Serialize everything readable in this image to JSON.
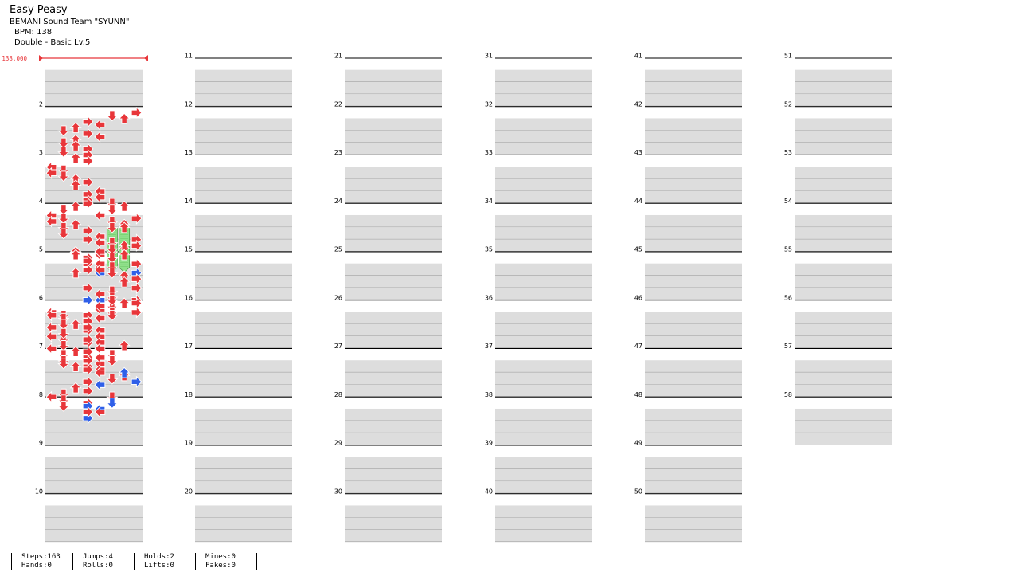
{
  "song": {
    "title": "Easy Peasy",
    "artist": "BEMANI Sound Team \"SYUNN\"",
    "bpm_label": "BPM: 138",
    "chart_label": "Double - Basic  Lv.5"
  },
  "bpm_marker": {
    "value": "138.000"
  },
  "colors": {
    "red_note": "#e8363a",
    "blue_note": "#2f5fe8",
    "hold": "#90e08a",
    "band": "#dddddd",
    "bpm": "#e8363a"
  },
  "measure_numbers": [
    "2",
    "3",
    "4",
    "5",
    "6",
    "7",
    "8",
    "9",
    "10",
    "11",
    "12",
    "13",
    "14",
    "15",
    "16",
    "17",
    "18",
    "19",
    "20",
    "21",
    "22",
    "23",
    "24",
    "25",
    "26",
    "27",
    "28",
    "29",
    "30",
    "31",
    "32",
    "33",
    "34",
    "35",
    "36",
    "37",
    "38",
    "39",
    "40",
    "41",
    "42",
    "43",
    "44",
    "45",
    "46",
    "47",
    "48",
    "49",
    "50",
    "51",
    "52",
    "53",
    "54",
    "55",
    "56",
    "57",
    "58"
  ],
  "stats": {
    "steps": "Steps:163",
    "hands": "Hands:0",
    "jumps": "Jumps:4",
    "rolls": "Rolls:0",
    "holds": "Holds:2",
    "lifts": "Lifts:0",
    "mines": "Mines:0",
    "fakes": "Fakes:0"
  },
  "notes": [
    {
      "m": 1,
      "b": 2,
      "l": 7,
      "c": "r"
    },
    {
      "m": 1,
      "b": 3,
      "l": 5,
      "c": "r"
    },
    {
      "m": 1,
      "b": 4,
      "l": 6,
      "c": "r"
    },
    {
      "m": 1,
      "b": 5,
      "l": 3,
      "c": "r"
    },
    {
      "m": 1,
      "b": 6,
      "l": 4,
      "c": "r"
    },
    {
      "m": 1,
      "b": 7,
      "l": 2,
      "c": "r"
    },
    {
      "m": 1,
      "b": 8,
      "l": 1,
      "c": "r"
    },
    {
      "m": 1,
      "b": 9,
      "l": 3,
      "c": "r"
    },
    {
      "m": 1,
      "b": 10,
      "l": 4,
      "c": "r"
    },
    {
      "m": 1,
      "b": 11,
      "l": 2,
      "c": "r"
    },
    {
      "m": 1,
      "b": 12,
      "l": 1,
      "c": "r"
    },
    {
      "m": 1,
      "b": 13,
      "l": 2,
      "c": "r"
    },
    {
      "m": 1,
      "b": 14,
      "l": 3,
      "c": "r"
    },
    {
      "m": 1,
      "b": 15,
      "l": 1,
      "c": "r"
    },
    {
      "m": 2,
      "b": 0,
      "l": 3,
      "c": "r"
    },
    {
      "m": 2,
      "b": 1,
      "l": 2,
      "c": "r"
    },
    {
      "m": 2,
      "b": 2,
      "l": 3,
      "c": "r"
    },
    {
      "m": 2,
      "b": 4,
      "l": 0,
      "c": "r"
    },
    {
      "m": 2,
      "b": 5,
      "l": 1,
      "c": "r"
    },
    {
      "m": 2,
      "b": 6,
      "l": 0,
      "c": "r"
    },
    {
      "m": 2,
      "b": 7,
      "l": 1,
      "c": "r"
    },
    {
      "m": 2,
      "b": 8,
      "l": 2,
      "c": "r"
    },
    {
      "m": 2,
      "b": 9,
      "l": 3,
      "c": "r"
    },
    {
      "m": 2,
      "b": 10,
      "l": 2,
      "c": "r"
    },
    {
      "m": 2,
      "b": 12,
      "l": 4,
      "c": "r"
    },
    {
      "m": 2,
      "b": 13,
      "l": 3,
      "c": "r"
    },
    {
      "m": 2,
      "b": 14,
      "l": 4,
      "c": "r"
    },
    {
      "m": 2,
      "b": 15,
      "l": 3,
      "c": "r"
    },
    {
      "m": 2,
      "b": 16,
      "l": 5,
      "c": "r"
    },
    {
      "m": 2,
      "b": 17,
      "l": 6,
      "c": "r"
    },
    {
      "m": 2,
      "b": 18,
      "l": 5,
      "c": "r"
    },
    {
      "m": 2,
      "b": 20,
      "l": 4,
      "c": "r"
    },
    {
      "m": 2,
      "b": 21,
      "l": 7,
      "c": "r"
    },
    {
      "m": 2,
      "b": 22,
      "l": 5,
      "c": "r"
    },
    {
      "m": 2,
      "b": 23,
      "l": 6,
      "c": "r"
    },
    {
      "m": 2,
      "b": 24,
      "l": 5,
      "c": "r"
    },
    {
      "m": 2,
      "b": 24,
      "l": 6,
      "c": "r"
    },
    {
      "m": 2,
      "b": 28,
      "l": 7,
      "c": "r"
    },
    {
      "m": 2,
      "b": 29,
      "l": 5,
      "c": "r"
    },
    {
      "m": 2,
      "b": 30,
      "l": 7,
      "c": "r"
    },
    {
      "m": 2,
      "b": 31,
      "l": 6,
      "c": "r"
    },
    {
      "m": 2,
      "b": 32,
      "l": 5,
      "c": "r"
    },
    {
      "m": 2,
      "b": 33,
      "l": 4,
      "c": "r"
    },
    {
      "m": 2,
      "b": 34,
      "l": 5,
      "c": "r"
    },
    {
      "m": 2,
      "b": 36,
      "l": 3,
      "c": "r"
    },
    {
      "m": 2,
      "b": 37,
      "l": 4,
      "c": "r"
    },
    {
      "m": 2,
      "b": 38,
      "l": 3,
      "c": "r"
    },
    {
      "m": 2,
      "b": 39,
      "l": 2,
      "c": "r"
    },
    {
      "m": 3,
      "b": 0,
      "l": 3,
      "c": "r"
    },
    {
      "m": 3,
      "b": 1,
      "l": 2,
      "c": "r"
    },
    {
      "m": 3,
      "b": 2,
      "l": 1,
      "c": "r"
    },
    {
      "m": 3,
      "b": 4,
      "l": 0,
      "c": "r"
    },
    {
      "m": 3,
      "b": 5,
      "l": 1,
      "c": "r"
    },
    {
      "m": 3,
      "b": 6,
      "l": 0,
      "c": "r"
    },
    {
      "m": 3,
      "b": 7,
      "l": 2,
      "c": "r"
    },
    {
      "m": 3,
      "b": 8,
      "l": 1,
      "c": "r"
    },
    {
      "m": 3,
      "b": 9,
      "l": 3,
      "c": "r"
    },
    {
      "m": 3,
      "b": 10,
      "l": 1,
      "c": "r"
    },
    {
      "m": 3,
      "b": 11,
      "l": 4,
      "c": "r"
    },
    {
      "m": 3,
      "b": 12,
      "l": 3,
      "c": "r"
    },
    {
      "m": 3,
      "b": 13,
      "l": 4,
      "c": "r"
    },
    {
      "m": 3,
      "b": 14,
      "l": 6,
      "c": "r"
    },
    {
      "m": 3,
      "b": 15,
      "l": 5,
      "c": "r"
    },
    {
      "m": 3,
      "b": 16,
      "l": 4,
      "c": "r"
    },
    {
      "m": 3,
      "b": 17,
      "l": 6,
      "c": "r"
    },
    {
      "m": 3,
      "b": 18,
      "l": 5,
      "c": "r"
    },
    {
      "m": 3,
      "b": 20,
      "l": 7,
      "c": "r"
    },
    {
      "m": 3,
      "b": 23,
      "l": 4,
      "c": "b"
    },
    {
      "m": 3,
      "b": 23,
      "l": 7,
      "c": "b"
    },
    {
      "m": 3,
      "b": 28,
      "l": 3,
      "c": "r"
    },
    {
      "m": 3,
      "b": 32,
      "l": 3,
      "c": "b"
    },
    {
      "m": 3,
      "b": 32,
      "l": 4,
      "c": "b"
    },
    {
      "m": 3,
      "b": 36,
      "l": 0,
      "c": "r"
    },
    {
      "m": 3,
      "b": 37,
      "l": 0,
      "c": "r"
    },
    {
      "m": 3,
      "b": 37,
      "l": 1,
      "c": "r"
    },
    {
      "m": 3,
      "b": 38,
      "l": 1,
      "c": "r"
    },
    {
      "m": 4,
      "b": 0,
      "l": 2,
      "c": "r"
    },
    {
      "m": 4,
      "b": 1,
      "l": 2,
      "c": "r"
    },
    {
      "m": 4,
      "b": 2,
      "l": 3,
      "c": "r"
    },
    {
      "m": 4,
      "b": 3,
      "l": 3,
      "c": "r"
    },
    {
      "m": 4,
      "b": 4,
      "l": 4,
      "c": "r"
    },
    {
      "m": 4,
      "b": 5,
      "l": 5,
      "c": "r"
    },
    {
      "m": 4,
      "b": 6,
      "l": 4,
      "c": "r"
    },
    {
      "m": 4,
      "b": 7,
      "l": 5,
      "c": "r"
    },
    {
      "m": 4,
      "b": 8,
      "l": 6,
      "c": "r"
    },
    {
      "m": 4,
      "b": 9,
      "l": 7,
      "c": "r"
    },
    {
      "m": 4,
      "b": 10,
      "l": 6,
      "c": "r"
    },
    {
      "m": 4,
      "b": 12,
      "l": 7,
      "c": "r"
    },
    {
      "m": 4,
      "b": 13,
      "l": 5,
      "c": "r"
    },
    {
      "m": 4,
      "b": 14,
      "l": 4,
      "c": "r"
    },
    {
      "m": 4,
      "b": 15,
      "l": 5,
      "c": "r"
    },
    {
      "m": 4,
      "b": 16,
      "l": 7,
      "c": "r"
    },
    {
      "m": 4,
      "b": 17,
      "l": 6,
      "c": "r"
    },
    {
      "m": 4,
      "b": 18,
      "l": 5,
      "c": "r"
    },
    {
      "m": 4,
      "b": 19,
      "l": 4,
      "c": "r"
    },
    {
      "m": 4,
      "b": 20,
      "l": 5,
      "c": "r"
    },
    {
      "m": 4,
      "b": 21,
      "l": 3,
      "c": "r"
    },
    {
      "m": 4,
      "b": 22,
      "l": 4,
      "c": "r"
    },
    {
      "m": 4,
      "b": 23,
      "l": 3,
      "c": "r"
    },
    {
      "m": 4,
      "b": 24,
      "l": 1,
      "c": "r"
    },
    {
      "m": 4,
      "b": 25,
      "l": 0,
      "c": "r"
    },
    {
      "m": 4,
      "b": 26,
      "l": 3,
      "c": "r"
    },
    {
      "m": 4,
      "b": 28,
      "l": 0,
      "c": "r"
    },
    {
      "m": 4,
      "b": 29,
      "l": 1,
      "c": "r"
    },
    {
      "m": 4,
      "b": 30,
      "l": 3,
      "c": "r"
    },
    {
      "m": 4,
      "b": 31,
      "l": 1,
      "c": "r"
    },
    {
      "m": 4,
      "b": 32,
      "l": 0,
      "c": "r"
    },
    {
      "m": 4,
      "b": 33,
      "l": 2,
      "c": "r"
    },
    {
      "m": 4,
      "b": 34,
      "l": 1,
      "c": "r"
    },
    {
      "m": 4,
      "b": 35,
      "l": 3,
      "c": "r"
    },
    {
      "m": 4,
      "b": 36,
      "l": 1,
      "c": "r"
    },
    {
      "m": 4,
      "b": 37,
      "l": 4,
      "c": "r"
    },
    {
      "m": 4,
      "b": 38,
      "l": 3,
      "c": "r"
    },
    {
      "m": 4,
      "b": 39,
      "l": 4,
      "c": "r"
    },
    {
      "m": 5,
      "b": 0,
      "l": 5,
      "c": "r"
    },
    {
      "m": 5,
      "b": 1,
      "l": 7,
      "c": "r"
    },
    {
      "m": 5,
      "b": 2,
      "l": 4,
      "c": "r"
    },
    {
      "m": 5,
      "b": 4,
      "l": 7,
      "c": "r"
    },
    {
      "m": 5,
      "b": 5,
      "l": 5,
      "c": "r"
    },
    {
      "m": 5,
      "b": 6,
      "l": 4,
      "c": "r"
    },
    {
      "m": 5,
      "b": 7,
      "l": 3,
      "c": "r"
    },
    {
      "m": 5,
      "b": 8,
      "l": 2,
      "c": "r"
    },
    {
      "m": 5,
      "b": 9,
      "l": 3,
      "c": "r"
    },
    {
      "m": 5,
      "b": 10,
      "l": 4,
      "c": "r"
    },
    {
      "m": 5,
      "b": 11,
      "l": 1,
      "c": "r"
    },
    {
      "m": 5,
      "b": 12,
      "l": 4,
      "c": "r"
    },
    {
      "m": 5,
      "b": 13,
      "l": 3,
      "c": "r"
    },
    {
      "m": 5,
      "b": 14,
      "l": 4,
      "c": "r"
    },
    {
      "m": 5,
      "b": 15,
      "l": 6,
      "c": "r"
    },
    {
      "m": 5,
      "b": 16,
      "l": 4,
      "c": "r"
    },
    {
      "m": 5,
      "b": 17,
      "l": 3,
      "c": "r"
    },
    {
      "m": 5,
      "b": 18,
      "l": 5,
      "c": "r"
    },
    {
      "m": 5,
      "b": 19,
      "l": 4,
      "c": "r"
    },
    {
      "m": 5,
      "b": 20,
      "l": 3,
      "c": "r"
    },
    {
      "m": 5,
      "b": 21,
      "l": 1,
      "c": "r"
    },
    {
      "m": 5,
      "b": 22,
      "l": 2,
      "c": "r"
    },
    {
      "m": 5,
      "b": 23,
      "l": 3,
      "c": "r"
    },
    {
      "m": 5,
      "b": 24,
      "l": 4,
      "c": "r"
    },
    {
      "m": 5,
      "b": 25,
      "l": 6,
      "c": "r"
    },
    {
      "m": 5,
      "b": 26,
      "l": 5,
      "c": "r"
    },
    {
      "m": 5,
      "b": 27,
      "l": 3,
      "c": "r"
    },
    {
      "m": 5,
      "b": 28,
      "l": 4,
      "c": "r"
    },
    {
      "m": 5,
      "b": 29,
      "l": 2,
      "c": "r"
    },
    {
      "m": 5,
      "b": 30,
      "l": 3,
      "c": "r"
    },
    {
      "m": 5,
      "b": 31,
      "l": 1,
      "c": "r"
    },
    {
      "m": 5,
      "b": 32,
      "l": 0,
      "c": "r"
    },
    {
      "m": 5,
      "b": 33,
      "l": 1,
      "c": "r"
    },
    {
      "m": 5,
      "b": 34,
      "l": 3,
      "c": "r"
    },
    {
      "m": 5,
      "b": 35,
      "l": 1,
      "c": "r"
    },
    {
      "m": 5,
      "b": 36,
      "l": 4,
      "c": "r"
    },
    {
      "m": 5,
      "b": 39,
      "l": 3,
      "c": "b"
    },
    {
      "m": 6,
      "b": 4,
      "l": 5,
      "c": "r"
    },
    {
      "m": 6,
      "b": 8,
      "l": 6,
      "c": "b"
    },
    {
      "m": 6,
      "b": 11,
      "l": 7,
      "c": "b"
    },
    {
      "m": 6,
      "b": 12,
      "l": 4,
      "c": "b"
    },
    {
      "m": 6,
      "b": 16,
      "l": 5,
      "c": "r"
    },
    {
      "m": 6,
      "b": 18,
      "l": 5,
      "c": "b"
    },
    {
      "m": 6,
      "b": 19,
      "l": 3,
      "c": "b"
    },
    {
      "m": 6,
      "b": 20,
      "l": 4,
      "c": "b"
    },
    {
      "m": 6,
      "b": 21,
      "l": 3,
      "c": "r"
    },
    {
      "m": 6,
      "b": 21,
      "l": 4,
      "c": "r"
    }
  ],
  "holds": [
    {
      "m": 2,
      "b": 24,
      "l": 5,
      "len": 3.3
    },
    {
      "m": 2,
      "b": 24,
      "l": 6,
      "len": 3.3
    }
  ]
}
